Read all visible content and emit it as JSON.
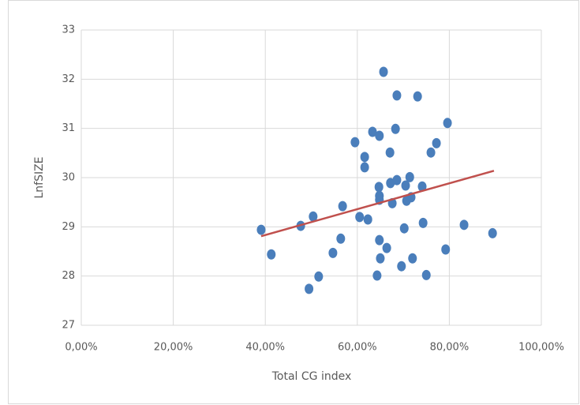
{
  "chart_data": {
    "type": "scatter",
    "xlabel": "Total CG index",
    "ylabel": "LnfSIZE",
    "x": [
      39.1,
      41.3,
      47.7,
      50.4,
      49.5,
      51.6,
      54.7,
      56.4,
      56.8,
      59.5,
      60.5,
      61.6,
      61.6,
      62.3,
      63.3,
      64.3,
      64.8,
      64.7,
      64.8,
      64.8,
      64.8,
      65.0,
      65.7,
      66.4,
      67.1,
      67.2,
      67.6,
      68.3,
      68.6,
      68.6,
      69.6,
      70.2,
      70.5,
      70.7,
      71.4,
      71.7,
      72.0,
      73.1,
      74.1,
      74.3,
      75.0,
      76.0,
      77.2,
      79.2,
      79.6,
      83.2,
      89.4
    ],
    "values": [
      28.94,
      28.44,
      29.02,
      29.21,
      27.74,
      27.99,
      28.47,
      28.76,
      29.42,
      30.72,
      29.2,
      30.42,
      30.21,
      29.15,
      30.93,
      28.01,
      30.85,
      29.81,
      29.63,
      29.55,
      28.73,
      28.36,
      32.15,
      28.57,
      30.51,
      29.89,
      29.48,
      30.99,
      31.67,
      29.95,
      28.2,
      28.97,
      29.84,
      29.53,
      30.01,
      29.6,
      28.36,
      31.65,
      29.82,
      29.08,
      28.02,
      30.51,
      30.7,
      28.54,
      31.11,
      29.04,
      28.87
    ],
    "color": "#4a7ebb",
    "trendline": {
      "x": [
        39.1,
        89.7
      ],
      "values": [
        28.81,
        30.14
      ],
      "color": "#c0504d"
    },
    "xlim": [
      0,
      100
    ],
    "xticks": [
      {
        "value": 0,
        "label": "0,00%"
      },
      {
        "value": 20,
        "label": "20,00%"
      },
      {
        "value": 40,
        "label": "40,00%"
      },
      {
        "value": 60,
        "label": "60,00%"
      },
      {
        "value": 80,
        "label": "80,00%"
      },
      {
        "value": 100,
        "label": "100,00%"
      }
    ],
    "ylim": [
      27,
      33
    ],
    "yticks": [
      27,
      28,
      29,
      30,
      31,
      32,
      33
    ],
    "grid": true
  }
}
